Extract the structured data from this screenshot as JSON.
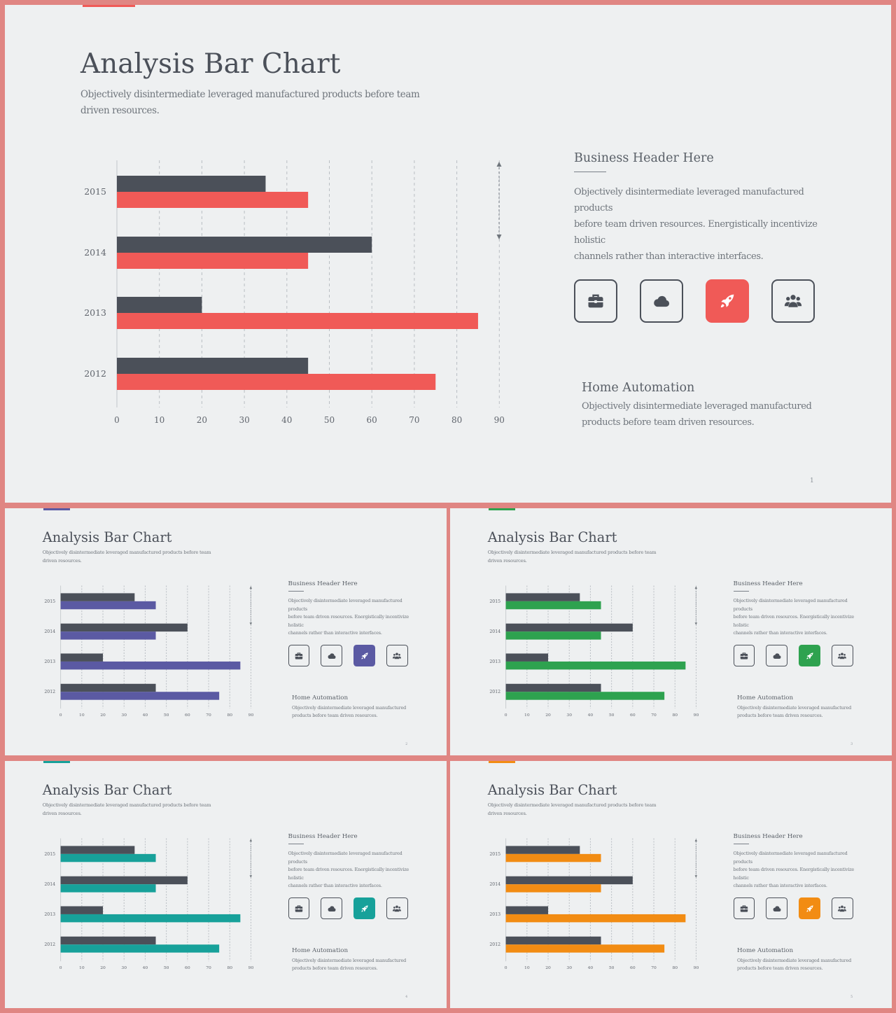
{
  "slides": [
    {
      "page": "1",
      "accent": "#f05a57"
    },
    {
      "page": "2",
      "accent": "#5b5aa3"
    },
    {
      "page": "3",
      "accent": "#2ea24f"
    },
    {
      "page": "4",
      "accent": "#17a19a"
    },
    {
      "page": "5",
      "accent": "#f28c13"
    }
  ],
  "content": {
    "title": "Analysis Bar Chart",
    "subtitle_line1": "Objectively disintermediate leveraged manufactured products before team",
    "subtitle_line2": "driven resources.",
    "business_header": "Business Header Here",
    "business_line1": "Objectively disintermediate leveraged manufactured products",
    "business_line2": "before team  driven resources. Energistically incentivize holistic",
    "business_line3": "channels rather than interactive interfaces.",
    "icons": [
      "briefcase-icon",
      "cloud-icon",
      "rocket-icon",
      "users-icon"
    ],
    "home_header": "Home Automation",
    "home_line1": "Objectively disintermediate leveraged manufactured",
    "home_line2": "products before team  driven resources."
  },
  "chart_data": {
    "type": "bar",
    "orientation": "horizontal",
    "categories": [
      "2015",
      "2014",
      "2013",
      "2012"
    ],
    "series": [
      {
        "color": "#4b5059",
        "values": [
          35,
          60,
          20,
          45
        ]
      },
      {
        "color": "accent",
        "values": [
          45,
          45,
          85,
          75
        ]
      }
    ],
    "xticks": [
      "0",
      "10",
      "20",
      "30",
      "40",
      "50",
      "60",
      "70",
      "80",
      "90"
    ],
    "xlim": [
      0,
      90
    ],
    "grid": "vertical dashed"
  }
}
